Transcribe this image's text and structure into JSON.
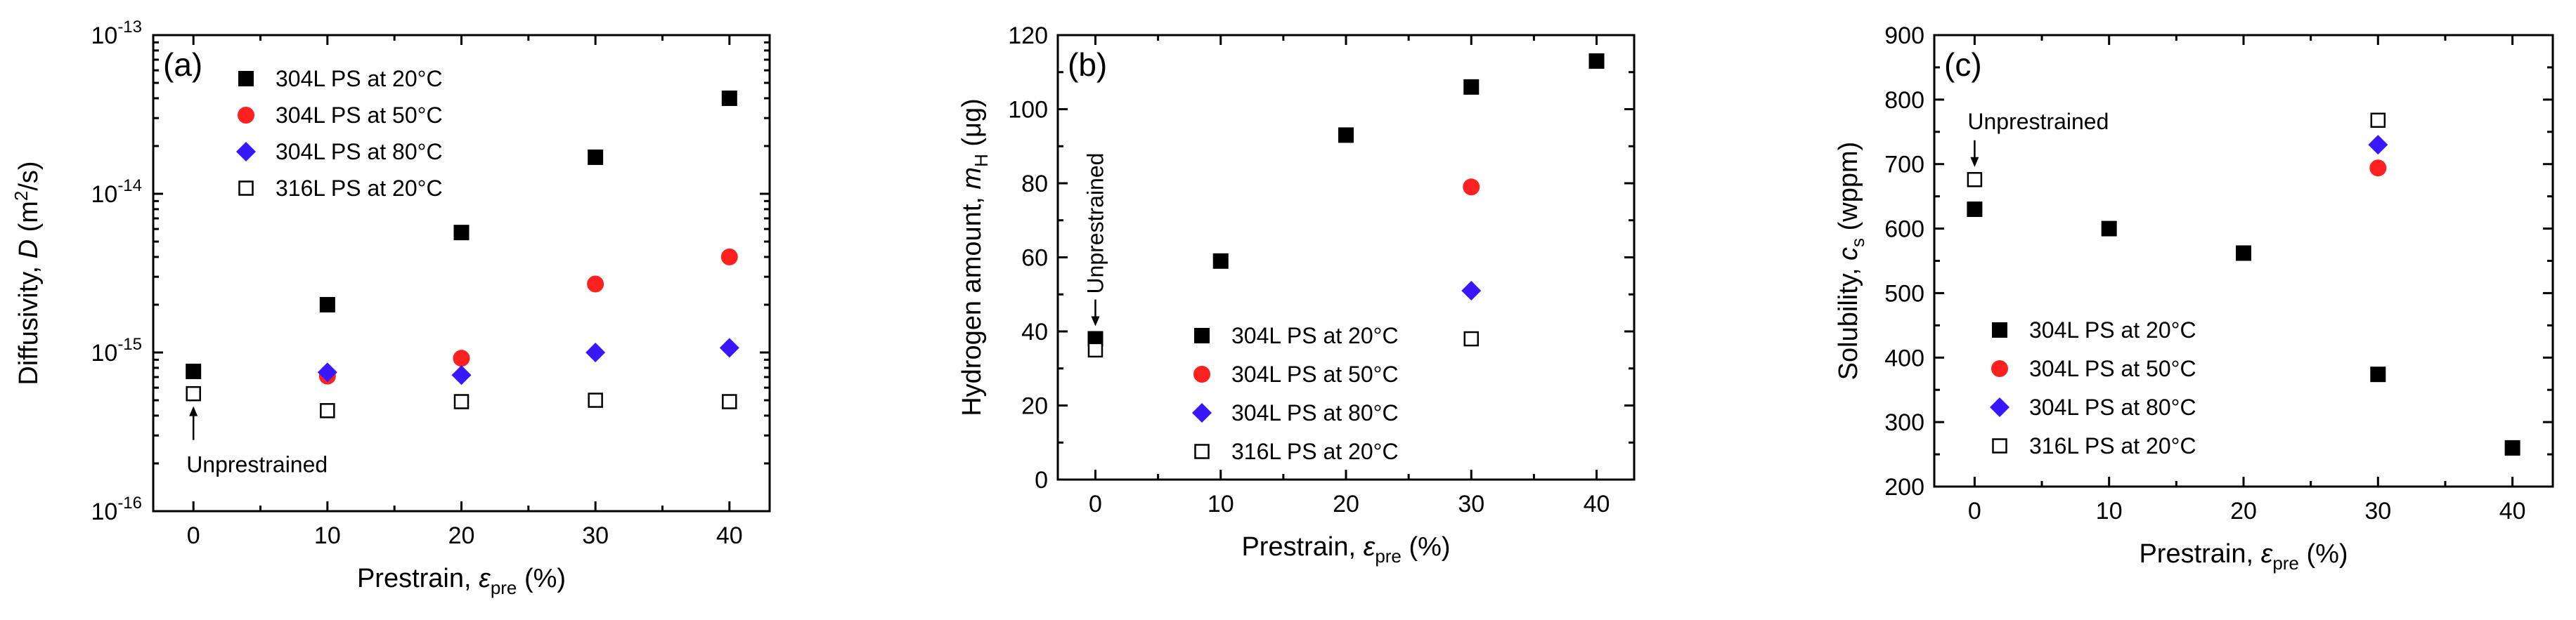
{
  "colors": {
    "s304_20": "#000000",
    "s304_50": "#ff2020",
    "s304_80": "#3a18ff",
    "s316_20": "#000000"
  },
  "chart_data": [
    {
      "type": "scatter",
      "panel_label": "(a)",
      "xlabel_prefix": "Prestrain, ",
      "xlabel_symbol": "ε",
      "xlabel_sub": "pre",
      "xlabel_suffix": " (%)",
      "ylabel_prefix": "Diffusivity, ",
      "ylabel_symbol": "D",
      "ylabel_suffix_open": " (m",
      "ylabel_sup": "2",
      "ylabel_suffix_close": "/s)",
      "yscale": "log",
      "xlim": [
        -3,
        43
      ],
      "ylim": [
        1e-16,
        1e-13
      ],
      "xticks": [
        0,
        10,
        20,
        30,
        40
      ],
      "xtick_labels": [
        "0",
        "10",
        "20",
        "30",
        "40"
      ],
      "yticks": [
        1e-16,
        1e-15,
        1e-14,
        1e-13
      ],
      "ytick_bases": [
        "10",
        "10",
        "10",
        "10"
      ],
      "ytick_exps": [
        "-16",
        "-15",
        "-14",
        "-13"
      ],
      "legend_position": "top-left",
      "annotation": {
        "text": "Unprestrained",
        "x": 0,
        "y": 5.5e-16,
        "direction": "below"
      },
      "series": [
        {
          "name": "304L PS at 20°C",
          "marker": "square-filled",
          "color_key": "s304_20",
          "x": [
            0,
            10,
            20,
            30,
            40
          ],
          "y": [
            7.6e-16,
            2e-15,
            5.7e-15,
            1.7e-14,
            4e-14
          ]
        },
        {
          "name": "304L PS at 50°C",
          "marker": "circle-filled",
          "color_key": "s304_50",
          "x": [
            10,
            20,
            30,
            40
          ],
          "y": [
            7.1e-16,
            9.2e-16,
            2.7e-15,
            4e-15
          ]
        },
        {
          "name": "304L PS at 80°C",
          "marker": "diamond-filled",
          "color_key": "s304_80",
          "x": [
            10,
            20,
            30,
            40
          ],
          "y": [
            7.5e-16,
            7.2e-16,
            1e-15,
            1.07e-15
          ]
        },
        {
          "name": "316L PS at 20°C",
          "marker": "square-open",
          "color_key": "s316_20",
          "x": [
            0,
            10,
            20,
            30,
            40
          ],
          "y": [
            5.5e-16,
            4.3e-16,
            4.9e-16,
            5e-16,
            4.9e-16
          ]
        }
      ]
    },
    {
      "type": "scatter",
      "panel_label": "(b)",
      "xlabel_prefix": "Prestrain, ",
      "xlabel_symbol": "ε",
      "xlabel_sub": "pre",
      "xlabel_suffix": " (%)",
      "ylabel_prefix": "Hydrogen amount, ",
      "ylabel_symbol": "m",
      "ylabel_sub": "H",
      "ylabel_suffix": " (μg)",
      "yscale": "linear",
      "xlim": [
        -3,
        43
      ],
      "ylim": [
        0,
        120
      ],
      "xticks": [
        0,
        10,
        20,
        30,
        40
      ],
      "xtick_labels": [
        "0",
        "10",
        "20",
        "30",
        "40"
      ],
      "yticks": [
        0,
        20,
        40,
        60,
        80,
        100,
        120
      ],
      "ytick_labels": [
        "0",
        "20",
        "40",
        "60",
        "80",
        "100",
        "120"
      ],
      "legend_position": "lower-center",
      "annotation": {
        "text": "Unprestrained",
        "x": 0,
        "y": 38,
        "direction": "vertical-above"
      },
      "series": [
        {
          "name": "304L PS at 20°C",
          "marker": "square-filled",
          "color_key": "s304_20",
          "x": [
            0,
            10,
            20,
            30,
            40
          ],
          "y": [
            38,
            59,
            93,
            106,
            113
          ]
        },
        {
          "name": "304L PS at 50°C",
          "marker": "circle-filled",
          "color_key": "s304_50",
          "x": [
            30
          ],
          "y": [
            79
          ]
        },
        {
          "name": "304L PS at 80°C",
          "marker": "diamond-filled",
          "color_key": "s304_80",
          "x": [
            30
          ],
          "y": [
            51
          ]
        },
        {
          "name": "316L PS at 20°C",
          "marker": "square-open",
          "color_key": "s316_20",
          "x": [
            0,
            30
          ],
          "y": [
            35,
            38
          ]
        }
      ]
    },
    {
      "type": "scatter",
      "panel_label": "(c)",
      "xlabel_prefix": "Prestrain, ",
      "xlabel_symbol": "ε",
      "xlabel_sub": "pre",
      "xlabel_suffix": " (%)",
      "ylabel_prefix": "Solubility, ",
      "ylabel_symbol": "c",
      "ylabel_sub": "s",
      "ylabel_suffix": " (wppm)",
      "yscale": "linear",
      "xlim": [
        -3,
        43
      ],
      "ylim": [
        200,
        900
      ],
      "xticks": [
        0,
        10,
        20,
        30,
        40
      ],
      "xtick_labels": [
        "0",
        "10",
        "20",
        "30",
        "40"
      ],
      "yticks": [
        200,
        300,
        400,
        500,
        600,
        700,
        800,
        900
      ],
      "ytick_labels": [
        "200",
        "300",
        "400",
        "500",
        "600",
        "700",
        "800",
        "900"
      ],
      "legend_position": "lower-left",
      "annotation": {
        "text": "Unprestrained",
        "x": 0,
        "y": 676,
        "direction": "above"
      },
      "series": [
        {
          "name": "304L PS at 20°C",
          "marker": "square-filled",
          "color_key": "s304_20",
          "x": [
            0,
            10,
            20,
            30,
            40
          ],
          "y": [
            630,
            600,
            562,
            374,
            260
          ]
        },
        {
          "name": "304L PS at 50°C",
          "marker": "circle-filled",
          "color_key": "s304_50",
          "x": [
            30
          ],
          "y": [
            694
          ]
        },
        {
          "name": "304L PS at 80°C",
          "marker": "diamond-filled",
          "color_key": "s304_80",
          "x": [
            30
          ],
          "y": [
            730
          ]
        },
        {
          "name": "316L PS at 20°C",
          "marker": "square-open",
          "color_key": "s316_20",
          "x": [
            0,
            30
          ],
          "y": [
            676,
            768
          ]
        }
      ]
    }
  ]
}
